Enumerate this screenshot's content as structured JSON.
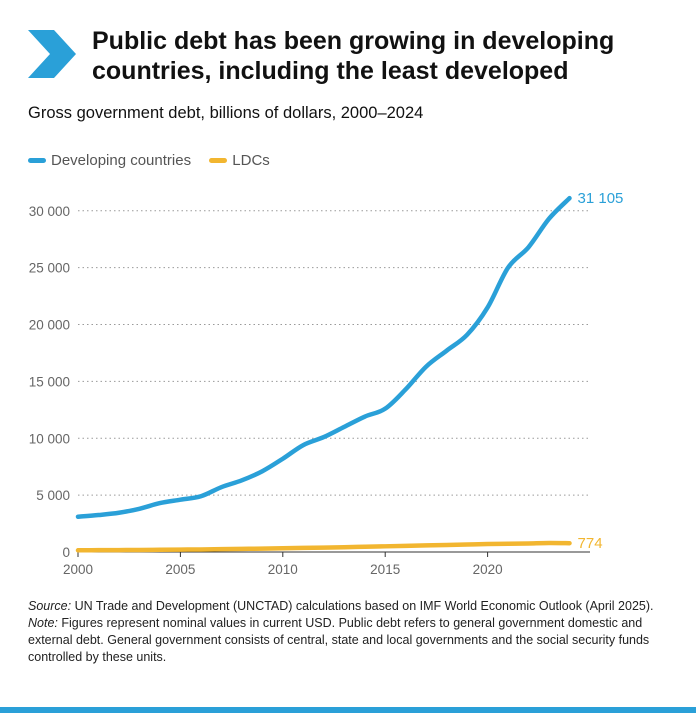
{
  "header": {
    "title": "Public debt has been growing in developing countries, including the least developed",
    "subtitle": "Gross government debt, billions of dollars, 2000–2024"
  },
  "legend": {
    "items": [
      {
        "label": "Developing countries",
        "color": "#2aa0d8"
      },
      {
        "label": "LDCs",
        "color": "#f2b630"
      }
    ]
  },
  "chart_data": {
    "type": "line",
    "title": "Gross government debt, billions of dollars, 2000–2024",
    "xlabel": "",
    "ylabel": "",
    "x": [
      2000,
      2001,
      2002,
      2003,
      2004,
      2005,
      2006,
      2007,
      2008,
      2009,
      2010,
      2011,
      2012,
      2013,
      2014,
      2015,
      2016,
      2017,
      2018,
      2019,
      2020,
      2021,
      2022,
      2023,
      2024
    ],
    "xticks": [
      "2000",
      "2005",
      "2010",
      "2015",
      "2020"
    ],
    "yticks": [
      "0",
      "5 000",
      "10 000",
      "15 000",
      "20 000",
      "25 000",
      "30 000"
    ],
    "ylim": [
      0,
      32000
    ],
    "xlim": [
      2000,
      2025
    ],
    "grid": true,
    "series": [
      {
        "name": "Developing countries",
        "color": "#2aa0d8",
        "values": [
          3100,
          3250,
          3450,
          3800,
          4300,
          4600,
          4900,
          5700,
          6300,
          7100,
          8200,
          9400,
          10100,
          11000,
          11900,
          12600,
          14300,
          16300,
          17700,
          19100,
          21500,
          25000,
          26800,
          29300,
          31105
        ],
        "end_label": "31 105"
      },
      {
        "name": "LDCs",
        "color": "#f2b630",
        "values": [
          150,
          160,
          170,
          180,
          195,
          210,
          225,
          250,
          275,
          300,
          330,
          360,
          390,
          420,
          460,
          500,
          540,
          580,
          620,
          660,
          700,
          720,
          750,
          790,
          774
        ],
        "end_label": "774"
      }
    ]
  },
  "notes": {
    "source_label": "Source:",
    "source_text": " UN Trade and Development (UNCTAD) calculations based on IMF World Economic Outlook (April 2025).",
    "note_label": "Note:",
    "note_text": " Figures represent nominal values in current USD. Public debt refers to general government domestic and external debt. General government consists of central, state and local governments and the social security funds controlled by these units."
  }
}
